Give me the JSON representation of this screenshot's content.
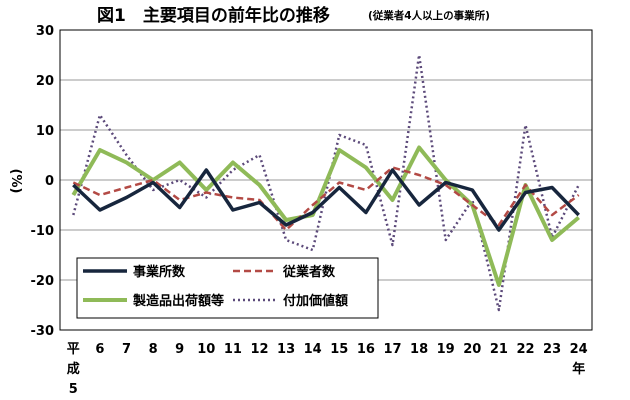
{
  "chart_data": {
    "type": "line",
    "title": "図1　主要項目の前年比の推移",
    "subtitle": "(従業者4人以上の事業所)",
    "ylabel": "(%)",
    "xlabel": "",
    "ylim": [
      -30,
      30
    ],
    "yticks": [
      30,
      20,
      10,
      0,
      -10,
      -20,
      -30
    ],
    "grid": true,
    "legend_position": "bottom-left",
    "categories": [
      "5",
      "6",
      "7",
      "8",
      "9",
      "10",
      "11",
      "12",
      "13",
      "14",
      "15",
      "16",
      "17",
      "18",
      "19",
      "20",
      "21",
      "22",
      "23",
      "24"
    ],
    "category_labels": [
      [
        "平",
        "成",
        "5"
      ],
      [
        "6"
      ],
      [
        "7"
      ],
      [
        "8"
      ],
      [
        "9"
      ],
      [
        "10"
      ],
      [
        "11"
      ],
      [
        "12"
      ],
      [
        "13"
      ],
      [
        "14"
      ],
      [
        "15"
      ],
      [
        "16"
      ],
      [
        "17"
      ],
      [
        "18"
      ],
      [
        "19"
      ],
      [
        "20"
      ],
      [
        "21"
      ],
      [
        "22"
      ],
      [
        "23"
      ],
      [
        "24",
        "年"
      ]
    ],
    "series": [
      {
        "name": "事業所数",
        "color": "#17263d",
        "style": "solid",
        "values": [
          -1,
          -6,
          -3.5,
          -0.5,
          -5.5,
          2,
          -6,
          -4.5,
          -9,
          -6.5,
          -1.5,
          -6.5,
          2,
          -5,
          -0.5,
          -2,
          -10,
          -2.5,
          -1.5,
          -7
        ]
      },
      {
        "name": "従業者数",
        "color": "#b34a45",
        "style": "dashed",
        "values": [
          -0.5,
          -3,
          -1.5,
          0,
          -4,
          -2.5,
          -3.5,
          -4,
          -10,
          -5,
          -0.5,
          -2,
          2.5,
          1,
          -1,
          -5,
          -9,
          -1,
          -7,
          -3
        ]
      },
      {
        "name": "製造品出荷額等",
        "color": "#8fba58",
        "style": "solid",
        "values": [
          -3,
          6,
          3.5,
          0,
          3.5,
          -2,
          3.5,
          -1,
          -8,
          -7,
          6,
          2.5,
          -4,
          6.5,
          0,
          -5,
          -21,
          -1,
          -12,
          -7.5
        ]
      },
      {
        "name": "付加価値額",
        "color": "#5c4a7a",
        "style": "dotted",
        "values": [
          -7,
          13,
          5,
          -2,
          0,
          -3.5,
          2,
          5,
          -12,
          -14,
          9,
          7,
          -13,
          25,
          -12,
          -4,
          -26,
          11,
          -11.5,
          -1
        ]
      }
    ]
  }
}
